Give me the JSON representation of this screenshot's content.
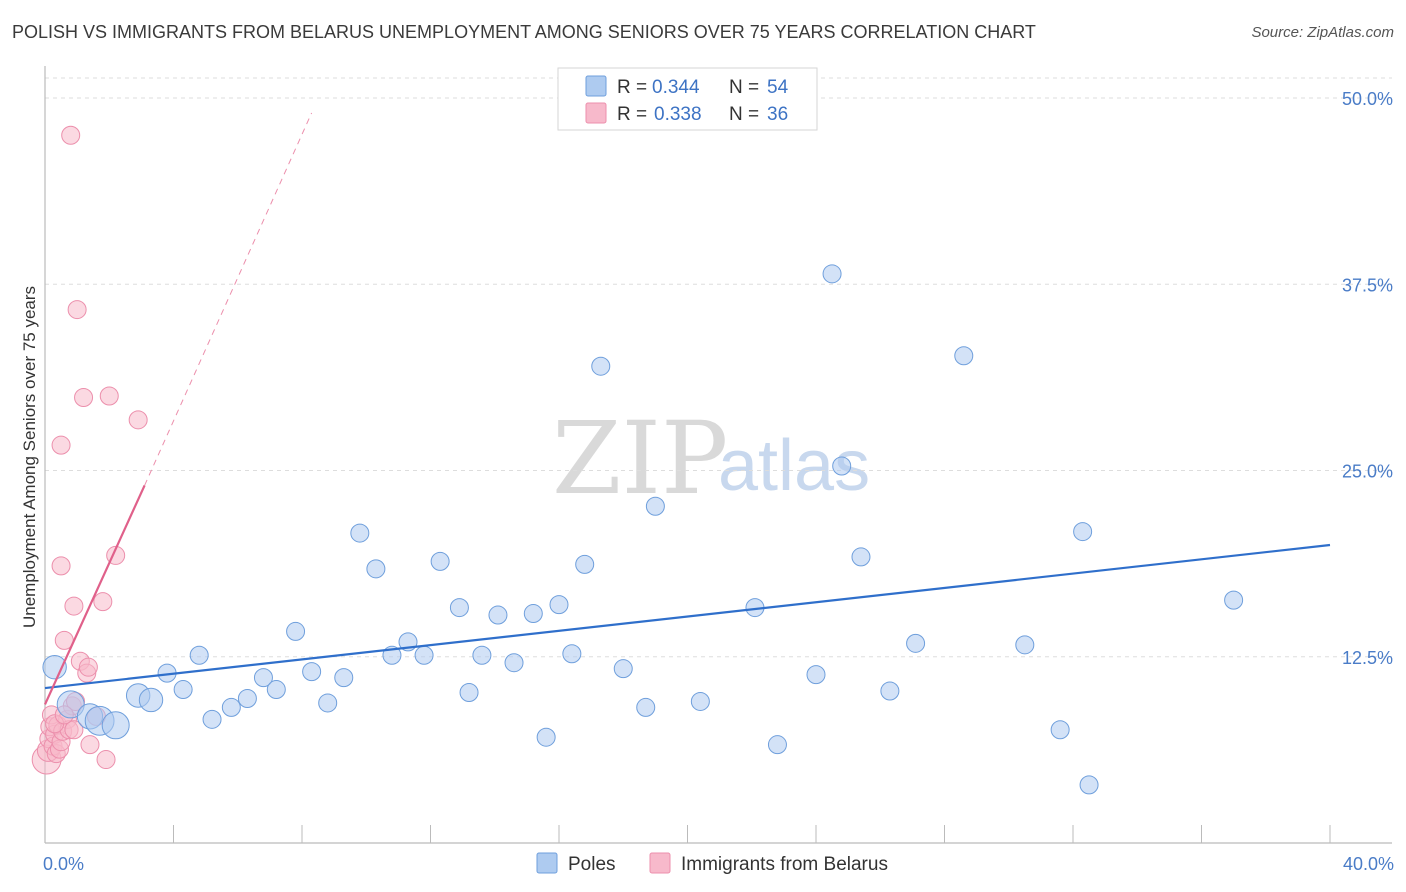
{
  "title": "POLISH VS IMMIGRANTS FROM BELARUS UNEMPLOYMENT AMONG SENIORS OVER 75 YEARS CORRELATION CHART",
  "source": "Source: ZipAtlas.com",
  "watermark": {
    "zip": "ZIP",
    "atlas": "atlas"
  },
  "legend": {
    "items": [
      {
        "r_label": "R =",
        "r_value": "0.344",
        "n_label": "N =",
        "n_value": "54"
      },
      {
        "r_label": "R =",
        "r_value": "0.338",
        "n_label": "N =",
        "n_value": "36"
      }
    ]
  },
  "colors": {
    "poles_fill": "#aecbf0",
    "poles_stroke": "#6f9fdc",
    "poles_line": "#2f6fcb",
    "belarus_fill": "#f7b9cb",
    "belarus_stroke": "#ec8fac",
    "belarus_line": "#e0608a",
    "grid": "#dddddd",
    "axis_label": "#4a7cc7"
  },
  "chart_data": {
    "type": "scatter",
    "title": "POLISH VS IMMIGRANTS FROM BELARUS UNEMPLOYMENT AMONG SENIORS OVER 75 YEARS CORRELATION CHART",
    "xlabel": "",
    "ylabel": "Unemployment Among Seniors over 75 years",
    "xlim": [
      0,
      40
    ],
    "ylim": [
      0,
      50
    ],
    "x_tick_labels": [
      "0.0%",
      "40.0%"
    ],
    "y_ticks": [
      {
        "value": 12.5,
        "label": "12.5%"
      },
      {
        "value": 25,
        "label": "25.0%"
      },
      {
        "value": 37.5,
        "label": "37.5%"
      },
      {
        "value": 50,
        "label": "50.0%"
      }
    ],
    "series": [
      {
        "name": "Poles",
        "R": 0.344,
        "N": 54,
        "trend": {
          "x0": 0,
          "y0": 10.4,
          "x1": 40,
          "y1": 20.0
        },
        "points": [
          {
            "x": 0.3,
            "y": 11.8,
            "s": 1.3
          },
          {
            "x": 0.8,
            "y": 9.3,
            "s": 1.5
          },
          {
            "x": 1.4,
            "y": 8.5,
            "s": 1.4
          },
          {
            "x": 1.7,
            "y": 8.2,
            "s": 1.6
          },
          {
            "x": 2.2,
            "y": 7.9,
            "s": 1.5
          },
          {
            "x": 2.9,
            "y": 9.9,
            "s": 1.3
          },
          {
            "x": 3.3,
            "y": 9.6,
            "s": 1.3
          },
          {
            "x": 3.8,
            "y": 11.4,
            "s": 1.0
          },
          {
            "x": 4.3,
            "y": 10.3,
            "s": 1.0
          },
          {
            "x": 4.8,
            "y": 12.6,
            "s": 1.0
          },
          {
            "x": 5.2,
            "y": 8.3,
            "s": 1.0
          },
          {
            "x": 5.8,
            "y": 9.1,
            "s": 1.0
          },
          {
            "x": 6.3,
            "y": 9.7,
            "s": 1.0
          },
          {
            "x": 6.8,
            "y": 11.1,
            "s": 1.0
          },
          {
            "x": 7.2,
            "y": 10.3,
            "s": 1.0
          },
          {
            "x": 7.8,
            "y": 14.2,
            "s": 1.0
          },
          {
            "x": 8.3,
            "y": 11.5,
            "s": 1.0
          },
          {
            "x": 8.8,
            "y": 9.4,
            "s": 1.0
          },
          {
            "x": 9.3,
            "y": 11.1,
            "s": 1.0
          },
          {
            "x": 9.8,
            "y": 20.8,
            "s": 1.0
          },
          {
            "x": 10.3,
            "y": 18.4,
            "s": 1.0
          },
          {
            "x": 10.8,
            "y": 12.6,
            "s": 1.0
          },
          {
            "x": 11.3,
            "y": 13.5,
            "s": 1.0
          },
          {
            "x": 11.8,
            "y": 12.6,
            "s": 1.0
          },
          {
            "x": 12.3,
            "y": 18.9,
            "s": 1.0
          },
          {
            "x": 12.9,
            "y": 15.8,
            "s": 1.0
          },
          {
            "x": 13.2,
            "y": 10.1,
            "s": 1.0
          },
          {
            "x": 13.6,
            "y": 12.6,
            "s": 1.0
          },
          {
            "x": 14.1,
            "y": 15.3,
            "s": 1.0
          },
          {
            "x": 14.6,
            "y": 12.1,
            "s": 1.0
          },
          {
            "x": 15.2,
            "y": 15.4,
            "s": 1.0
          },
          {
            "x": 15.6,
            "y": 7.1,
            "s": 1.0
          },
          {
            "x": 16.0,
            "y": 16.0,
            "s": 1.0
          },
          {
            "x": 16.4,
            "y": 12.7,
            "s": 1.0
          },
          {
            "x": 16.8,
            "y": 18.7,
            "s": 1.0
          },
          {
            "x": 17.3,
            "y": 32.0,
            "s": 1.0
          },
          {
            "x": 18.0,
            "y": 11.7,
            "s": 1.0
          },
          {
            "x": 18.7,
            "y": 9.1,
            "s": 1.0
          },
          {
            "x": 19.0,
            "y": 22.6,
            "s": 1.0
          },
          {
            "x": 20.4,
            "y": 9.5,
            "s": 1.0
          },
          {
            "x": 22.1,
            "y": 15.8,
            "s": 1.0
          },
          {
            "x": 22.8,
            "y": 6.6,
            "s": 1.0
          },
          {
            "x": 24.0,
            "y": 11.3,
            "s": 1.0
          },
          {
            "x": 24.5,
            "y": 38.2,
            "s": 1.0
          },
          {
            "x": 24.8,
            "y": 25.3,
            "s": 1.0
          },
          {
            "x": 25.4,
            "y": 19.2,
            "s": 1.0
          },
          {
            "x": 26.3,
            "y": 10.2,
            "s": 1.0
          },
          {
            "x": 27.1,
            "y": 13.4,
            "s": 1.0
          },
          {
            "x": 28.6,
            "y": 32.7,
            "s": 1.0
          },
          {
            "x": 30.5,
            "y": 13.3,
            "s": 1.0
          },
          {
            "x": 31.6,
            "y": 7.6,
            "s": 1.0
          },
          {
            "x": 32.3,
            "y": 20.9,
            "s": 1.0
          },
          {
            "x": 32.5,
            "y": 3.9,
            "s": 1.0
          },
          {
            "x": 37.0,
            "y": 16.3,
            "s": 1.0
          }
        ]
      },
      {
        "name": "Immigrants from Belarus",
        "R": 0.338,
        "N": 36,
        "trend": {
          "x0": 0,
          "y0": 9.3,
          "x1": 3.1,
          "y1": 24.0
        },
        "trend_extension": {
          "x0": 3.1,
          "y0": 24.0,
          "x1": 8.3,
          "y1": 49.0
        },
        "points": [
          {
            "x": 0.05,
            "y": 5.6,
            "s": 1.6
          },
          {
            "x": 0.1,
            "y": 6.2,
            "s": 1.2
          },
          {
            "x": 0.12,
            "y": 7.0,
            "s": 1.0
          },
          {
            "x": 0.15,
            "y": 7.8,
            "s": 1.0
          },
          {
            "x": 0.2,
            "y": 8.6,
            "s": 1.0
          },
          {
            "x": 0.25,
            "y": 6.5,
            "s": 1.0
          },
          {
            "x": 0.3,
            "y": 7.3,
            "s": 1.0
          },
          {
            "x": 0.35,
            "y": 6.0,
            "s": 1.0
          },
          {
            "x": 0.4,
            "y": 7.9,
            "s": 1.0
          },
          {
            "x": 0.45,
            "y": 6.3,
            "s": 1.0
          },
          {
            "x": 0.5,
            "y": 6.8,
            "s": 1.0
          },
          {
            "x": 0.55,
            "y": 7.5,
            "s": 1.0
          },
          {
            "x": 0.5,
            "y": 26.7,
            "s": 1.0
          },
          {
            "x": 0.5,
            "y": 18.6,
            "s": 1.0
          },
          {
            "x": 0.6,
            "y": 13.6,
            "s": 1.0
          },
          {
            "x": 0.7,
            "y": 8.3,
            "s": 1.0
          },
          {
            "x": 0.75,
            "y": 7.6,
            "s": 1.0
          },
          {
            "x": 0.8,
            "y": 47.5,
            "s": 1.0
          },
          {
            "x": 0.85,
            "y": 9.2,
            "s": 1.0
          },
          {
            "x": 0.9,
            "y": 7.6,
            "s": 1.0
          },
          {
            "x": 0.9,
            "y": 15.9,
            "s": 1.0
          },
          {
            "x": 0.95,
            "y": 9.5,
            "s": 1.0
          },
          {
            "x": 1.0,
            "y": 35.8,
            "s": 1.0
          },
          {
            "x": 1.1,
            "y": 12.2,
            "s": 1.0
          },
          {
            "x": 1.2,
            "y": 29.9,
            "s": 1.0
          },
          {
            "x": 1.3,
            "y": 11.4,
            "s": 1.0
          },
          {
            "x": 1.35,
            "y": 11.8,
            "s": 1.0
          },
          {
            "x": 1.4,
            "y": 6.6,
            "s": 1.0
          },
          {
            "x": 1.6,
            "y": 8.5,
            "s": 1.0
          },
          {
            "x": 1.8,
            "y": 16.2,
            "s": 1.0
          },
          {
            "x": 1.9,
            "y": 5.6,
            "s": 1.0
          },
          {
            "x": 2.0,
            "y": 30.0,
            "s": 1.0
          },
          {
            "x": 2.2,
            "y": 19.3,
            "s": 1.0
          },
          {
            "x": 2.9,
            "y": 28.4,
            "s": 1.0
          },
          {
            "x": 0.3,
            "y": 8.0,
            "s": 1.0
          },
          {
            "x": 0.6,
            "y": 8.6,
            "s": 1.0
          }
        ]
      }
    ],
    "bottom_legend": [
      "Poles",
      "Immigrants from Belarus"
    ]
  }
}
